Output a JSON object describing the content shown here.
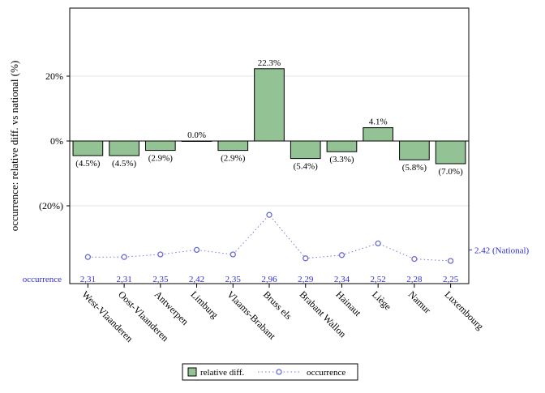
{
  "chart_data": {
    "type": "bar",
    "ylabel": "occurrence: relative diff. vs national (%)",
    "yticks": [
      "20%",
      "0%",
      "(20%)"
    ],
    "ytick_values": [
      20,
      0,
      -20
    ],
    "ylim": [
      -44,
      41
    ],
    "categories": [
      "West-Vlaanderen",
      "Oost-Vlaanderen",
      "Antwerpen",
      "Limburg",
      "Vlaams-Brabant",
      "Bruss els",
      "Brabant Wallon",
      "Hainaut",
      "Liège",
      "Namur",
      "Luxembourg"
    ],
    "series": [
      {
        "name": "relative diff.",
        "values": [
          -4.5,
          -4.5,
          -2.9,
          0.0,
          -2.9,
          22.3,
          -5.4,
          -3.3,
          4.1,
          -5.8,
          -7.0
        ],
        "labels": [
          "(4.5%)",
          "(4.5%)",
          "(2.9%)",
          "0.0%",
          "(2.9%)",
          "22.3%",
          "(5.4%)",
          "(3.3%)",
          "4.1%",
          "(5.8%)",
          "(7.0%)"
        ],
        "color": "#93c294"
      },
      {
        "name": "occurrence",
        "values": [
          2.31,
          2.31,
          2.35,
          2.42,
          2.35,
          2.96,
          2.29,
          2.34,
          2.52,
          2.28,
          2.25
        ],
        "labels": [
          "2,31",
          "2,31",
          "2,35",
          "2,42",
          "2,35",
          "2,96",
          "2,29",
          "2,34",
          "2,52",
          "2,28",
          "2,25"
        ],
        "color": "#6b6bd6"
      }
    ],
    "occurrence_row_label": "occurrence",
    "national_label": "2.42 (National)",
    "national_value": 2.42,
    "legend": [
      "relative diff.",
      "occurrence"
    ],
    "legend_position": "bottom",
    "grid": true
  }
}
